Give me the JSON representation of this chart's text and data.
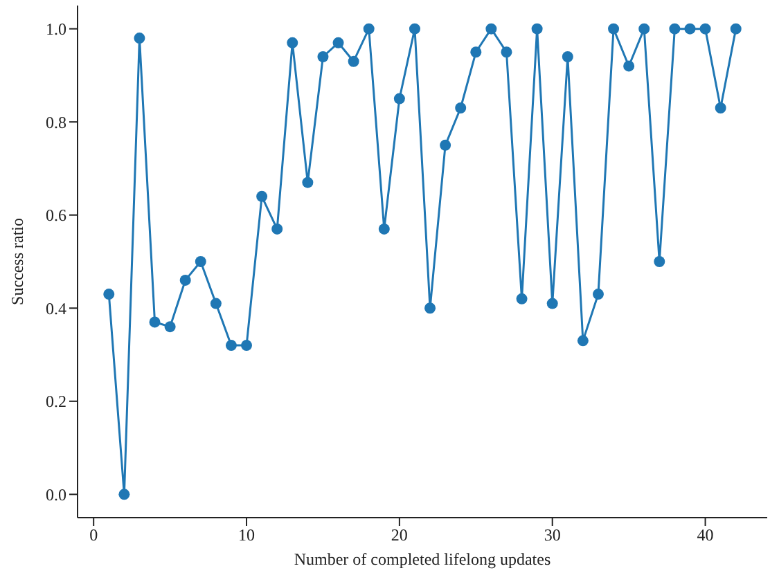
{
  "chart_data": {
    "type": "line",
    "xlabel": "Number of completed lifelong updates",
    "ylabel": "Success ratio",
    "x": [
      1,
      2,
      3,
      4,
      5,
      6,
      7,
      8,
      9,
      10,
      11,
      12,
      13,
      14,
      15,
      16,
      17,
      18,
      19,
      20,
      21,
      22,
      23,
      24,
      25,
      26,
      27,
      28,
      29,
      30,
      31,
      32,
      33,
      34,
      35,
      36,
      37,
      38,
      39,
      40,
      41,
      42
    ],
    "series": [
      {
        "color": "#1f77b4",
        "values": [
          0.43,
          0,
          0.98,
          0.37,
          0.36,
          0.46,
          0.5,
          0.41,
          0.32,
          0.32,
          0.64,
          0.57,
          0.97,
          0.67,
          0.94,
          0.97,
          0.93,
          1,
          0.57,
          0.85,
          1,
          0.4,
          0.75,
          0.83,
          0.95,
          1,
          0.95,
          0.42,
          1,
          0.41,
          0.94,
          0.33,
          0.43,
          1,
          0.92,
          1,
          0.5,
          1,
          1,
          1,
          0.83,
          1
        ]
      }
    ],
    "xlim": [
      -1.05,
      44.05
    ],
    "xticks": [
      0,
      10,
      20,
      30,
      40
    ],
    "ylim": [
      -0.05,
      1.05
    ],
    "yticks": [
      {
        "value": 0,
        "label": "0.0"
      },
      {
        "value": 0.2,
        "label": "0.2"
      },
      {
        "value": 0.4,
        "label": "0.4"
      },
      {
        "value": 0.6,
        "label": "0.6"
      },
      {
        "value": 0.8,
        "label": "0.8"
      },
      {
        "value": 1,
        "label": "1.0"
      }
    ],
    "grid": false,
    "legend": false,
    "marker": "circle",
    "line_style": "solid"
  }
}
